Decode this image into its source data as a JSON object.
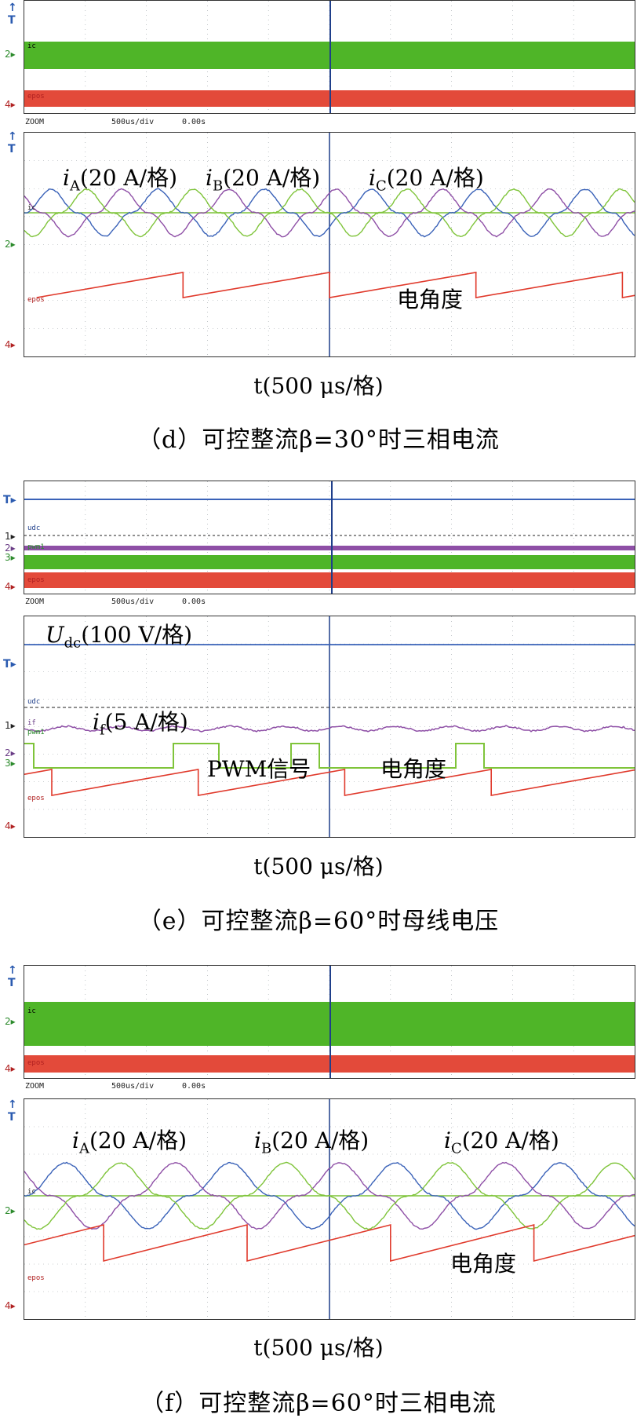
{
  "time_axis_label": "t(500 μs/格)",
  "zoom": {
    "label": "ZOOM",
    "scale": "500us/div",
    "offset": "0.00s"
  },
  "markers": {
    "trigger": "T",
    "ch1": "1",
    "ch2": "2",
    "ch3": "3",
    "ch4": "4"
  },
  "channel_tags": {
    "ic": "ic",
    "epos": "epos",
    "udc": "udc",
    "if": "if",
    "pwm1": "pwm1"
  },
  "panels": [
    {
      "caption": "（d）可控整流β=30°时三相电流",
      "annotations": {
        "iA": {
          "var": "i",
          "sub": "A",
          "text": "(20 A/格)"
        },
        "iB": {
          "var": "i",
          "sub": "B",
          "text": "(20 A/格)"
        },
        "iC": {
          "var": "i",
          "sub": "C",
          "text": "(20 A/格)"
        },
        "angle": "电角度"
      }
    },
    {
      "caption": "（e）可控整流β=60°时母线电压",
      "annotations": {
        "udc": {
          "var": "U",
          "sub": "dc",
          "text": "(100 V/格)"
        },
        "if": {
          "var": "i",
          "sub": "f",
          "text": "(5 A/格)"
        },
        "pwm": "PWM信号",
        "angle": "电角度"
      }
    },
    {
      "caption": "（f）可控整流β=60°时三相电流",
      "annotations": {
        "iA": {
          "var": "i",
          "sub": "A",
          "text": "(20 A/格)"
        },
        "iB": {
          "var": "i",
          "sub": "B",
          "text": "(20 A/格)"
        },
        "iC": {
          "var": "i",
          "sub": "C",
          "text": "(20 A/格)"
        },
        "angle": "电角度"
      }
    }
  ],
  "colors": {
    "phaseA": "#3a62b8",
    "phaseB": "#8e4fa6",
    "phaseC": "#7fc43a",
    "angle": "#e0392b",
    "green_band": "#4fb528",
    "red_band": "#e34a3a",
    "udc": "#3a62b8",
    "if": "#8e4fa6",
    "pwm": "#7fc43a",
    "grid": "#9aa0a6"
  },
  "chart_data": [
    {
      "type": "line",
      "title": "",
      "xlabel": "t(500 μs/格)",
      "ylabel": "",
      "x_unit_per_div": "500 μs",
      "divisions": 10,
      "series": [
        {
          "name": "iA(20 A/格)",
          "waveform": "three-phase current",
          "electrical_period_div": 1.75
        },
        {
          "name": "iB(20 A/格)",
          "waveform": "three-phase current",
          "phase_shift_deg": 120
        },
        {
          "name": "iC(20 A/格)",
          "waveform": "three-phase current",
          "phase_shift_deg": 240
        },
        {
          "name": "电角度",
          "waveform": "sawtooth",
          "period_div": 2.7
        }
      ]
    },
    {
      "type": "line",
      "title": "",
      "xlabel": "t(500 μs/格)",
      "ylabel": "",
      "x_unit_per_div": "500 μs",
      "divisions": 10,
      "series": [
        {
          "name": "Udc(100 V/格)",
          "waveform": "dc"
        },
        {
          "name": "if(5 A/格)",
          "waveform": "ripple"
        },
        {
          "name": "PWM信号",
          "waveform": "pulse"
        },
        {
          "name": "电角度",
          "waveform": "sawtooth",
          "period_div": 2.7
        }
      ]
    },
    {
      "type": "line",
      "title": "",
      "xlabel": "t(500 μs/格)",
      "ylabel": "",
      "x_unit_per_div": "500 μs",
      "divisions": 10,
      "series": [
        {
          "name": "iA(20 A/格)",
          "waveform": "three-phase current",
          "electrical_period_div": 2.7
        },
        {
          "name": "iB(20 A/格)",
          "waveform": "three-phase current",
          "phase_shift_deg": 120
        },
        {
          "name": "iC(20 A/格)",
          "waveform": "three-phase current",
          "phase_shift_deg": 240
        },
        {
          "name": "电角度",
          "waveform": "sawtooth",
          "period_div": 2.7
        }
      ]
    }
  ]
}
